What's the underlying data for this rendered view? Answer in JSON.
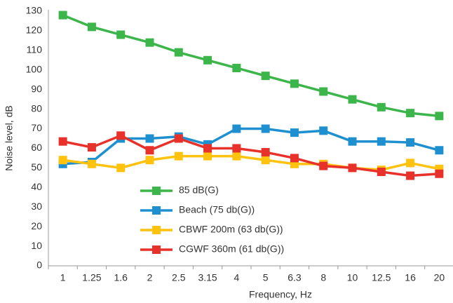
{
  "chart_data": {
    "type": "line",
    "x_label": "Frequency, Hz",
    "y_label": "Noise level, dB",
    "categories": [
      "1",
      "1.25",
      "1.6",
      "2",
      "2.5",
      "3.15",
      "4",
      "5",
      "6.3",
      "8",
      "10",
      "12.5",
      "16",
      "20"
    ],
    "series": [
      {
        "name": "85 dB(G)",
        "color": "#3cb54a",
        "values": [
          128,
          122,
          118,
          114,
          109,
          105,
          101,
          97,
          93,
          89,
          85,
          81,
          78,
          76.5
        ]
      },
      {
        "name": "Beach (75 db(G))",
        "color": "#1e90d0",
        "values": [
          52,
          53,
          65,
          65,
          66,
          62,
          70,
          70,
          68,
          69,
          63.5,
          63.5,
          63,
          59
        ]
      },
      {
        "name": "CBWF 200m (63 db(G))",
        "color": "#ffc20e",
        "values": [
          54,
          52,
          50,
          54,
          56,
          56,
          56,
          54,
          52,
          52,
          50,
          49,
          52.5,
          49.5
        ]
      },
      {
        "name": "CGWF 360m (61 db(G))",
        "color": "#e8312a",
        "values": [
          63.5,
          60.5,
          66.5,
          59,
          65,
          60,
          60,
          58,
          55,
          51,
          50,
          48,
          46,
          47
        ]
      }
    ],
    "ylim": [
      0,
      130
    ],
    "yticks": [
      0,
      10,
      20,
      30,
      40,
      50,
      60,
      70,
      80,
      90,
      100,
      110,
      120,
      130
    ],
    "grid": false
  }
}
